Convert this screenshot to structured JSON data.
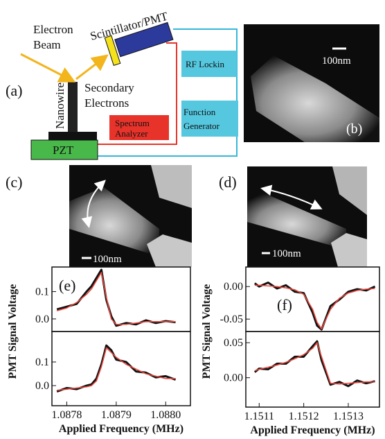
{
  "schematic": {
    "panel_label": "(a)",
    "electron_beam": [
      "Electron",
      "Beam"
    ],
    "scintillator": "Scintillator/PMT",
    "rf_lockin": "RF Lockin",
    "secondary_electrons": [
      "Secondary",
      "Electrons"
    ],
    "nanowire": "Nanowire",
    "function_generator": [
      "Function",
      "Generator"
    ],
    "spectrum_analyzer": [
      "Spectrum",
      "Analyzer"
    ],
    "pzt": "PZT"
  },
  "images": [
    {
      "panel_label": "(b)",
      "scale": "100nm"
    },
    {
      "panel_label": "(c)",
      "scale": "100nm"
    },
    {
      "panel_label": "(d)",
      "scale": "100nm"
    }
  ],
  "chart_data": [
    {
      "type": "line",
      "panel_label": "(e)",
      "ylabel": "PMT Signal Voltage",
      "x": [
        1.08778,
        1.0878,
        1.08782,
        1.08784,
        1.08785,
        1.08786,
        1.08787,
        1.08788,
        1.08789,
        1.0879,
        1.08792,
        1.08794,
        1.08796,
        1.08798,
        1.088,
        1.08802
      ],
      "xlim": [
        1.08777,
        1.08805
      ],
      "ylim": [
        -0.046,
        0.19
      ],
      "yticks": [
        0.1,
        {
          "value": 0,
          "label": "0.0"
        }
      ],
      "series": [
        {
          "color": "#111111",
          "values": [
            0.035,
            0.045,
            0.055,
            0.1,
            0.12,
            0.15,
            0.18,
            0.07,
            0.01,
            -0.025,
            -0.015,
            -0.02,
            -0.005,
            -0.015,
            -0.008,
            -0.012
          ]
        },
        {
          "color": "#e8473c",
          "values": [
            0.03,
            0.04,
            0.06,
            0.09,
            0.11,
            0.14,
            0.17,
            0.08,
            0.0,
            -0.02,
            -0.02,
            -0.015,
            -0.01,
            -0.01,
            -0.01,
            -0.01
          ]
        }
      ]
    },
    {
      "type": "line",
      "xlabel": "Applied Frequency (MHz)",
      "x": [
        1.08778,
        1.0878,
        1.08782,
        1.08784,
        1.08785,
        1.08786,
        1.08787,
        1.08788,
        1.08789,
        1.0879,
        1.08792,
        1.08794,
        1.08796,
        1.08798,
        1.088,
        1.08802
      ],
      "xlim": [
        1.08777,
        1.08805
      ],
      "ylim": [
        -0.085,
        0.229
      ],
      "yticks": [
        0.1,
        {
          "value": 0,
          "label": "0.0"
        }
      ],
      "xticks": [
        1.0878,
        1.0879,
        {
          "value": 1.088,
          "label": "1.0880"
        }
      ],
      "series": [
        {
          "color": "#111111",
          "values": [
            -0.025,
            -0.01,
            -0.015,
            0.0,
            0.005,
            0.03,
            0.09,
            0.17,
            0.15,
            0.11,
            0.1,
            0.06,
            0.055,
            0.035,
            0.04,
            0.025
          ]
        },
        {
          "color": "#e8473c",
          "values": [
            -0.02,
            -0.015,
            -0.01,
            -0.005,
            0.0,
            0.02,
            0.08,
            0.16,
            0.14,
            0.12,
            0.09,
            0.07,
            0.05,
            0.04,
            0.03,
            0.03
          ]
        }
      ]
    },
    {
      "type": "line",
      "panel_label": "(f)",
      "ylabel": "PMT Signal Voltage",
      "x": [
        1.15109,
        1.1511,
        1.15112,
        1.15114,
        1.15116,
        1.15118,
        1.1512,
        1.15122,
        1.15123,
        1.15124,
        1.15126,
        1.15128,
        1.1513,
        1.15132,
        1.15134,
        1.15136
      ],
      "xlim": [
        1.15107,
        1.15137
      ],
      "ylim": [
        -0.069,
        0.03
      ],
      "yticks": [
        {
          "value": 0,
          "label": "0.00"
        },
        -0.05
      ],
      "series": [
        {
          "color": "#111111",
          "values": [
            0.005,
            0.0,
            0.006,
            -0.003,
            0.002,
            -0.008,
            -0.01,
            -0.04,
            -0.06,
            -0.066,
            -0.03,
            -0.02,
            -0.008,
            -0.004,
            -0.006,
            0.0
          ]
        },
        {
          "color": "#e8473c",
          "values": [
            0.002,
            0.002,
            0.001,
            0.0,
            -0.002,
            -0.005,
            -0.012,
            -0.035,
            -0.055,
            -0.065,
            -0.035,
            -0.018,
            -0.01,
            -0.006,
            -0.004,
            -0.003
          ]
        }
      ]
    },
    {
      "type": "line",
      "xlabel": "Applied Frequency (MHz)",
      "x": [
        1.15109,
        1.1511,
        1.15112,
        1.15114,
        1.15116,
        1.15118,
        1.1512,
        1.15122,
        1.15123,
        1.15124,
        1.15126,
        1.15128,
        1.1513,
        1.15132,
        1.15134,
        1.15136
      ],
      "xlim": [
        1.15107,
        1.15137
      ],
      "ylim": [
        -0.042,
        0.066
      ],
      "yticks": [
        0.05,
        {
          "value": 0,
          "label": "0.00"
        }
      ],
      "xticks": [
        1.1511,
        1.1512,
        1.1513
      ],
      "series": [
        {
          "color": "#111111",
          "values": [
            0.008,
            0.013,
            0.012,
            0.02,
            0.02,
            0.03,
            0.03,
            0.045,
            0.052,
            0.025,
            -0.01,
            -0.006,
            -0.012,
            -0.004,
            -0.008,
            -0.005
          ]
        },
        {
          "color": "#e8473c",
          "values": [
            0.01,
            0.012,
            0.015,
            0.018,
            0.022,
            0.027,
            0.033,
            0.042,
            0.05,
            0.03,
            -0.008,
            -0.009,
            -0.008,
            -0.007,
            -0.006,
            -0.006
          ]
        }
      ]
    }
  ]
}
